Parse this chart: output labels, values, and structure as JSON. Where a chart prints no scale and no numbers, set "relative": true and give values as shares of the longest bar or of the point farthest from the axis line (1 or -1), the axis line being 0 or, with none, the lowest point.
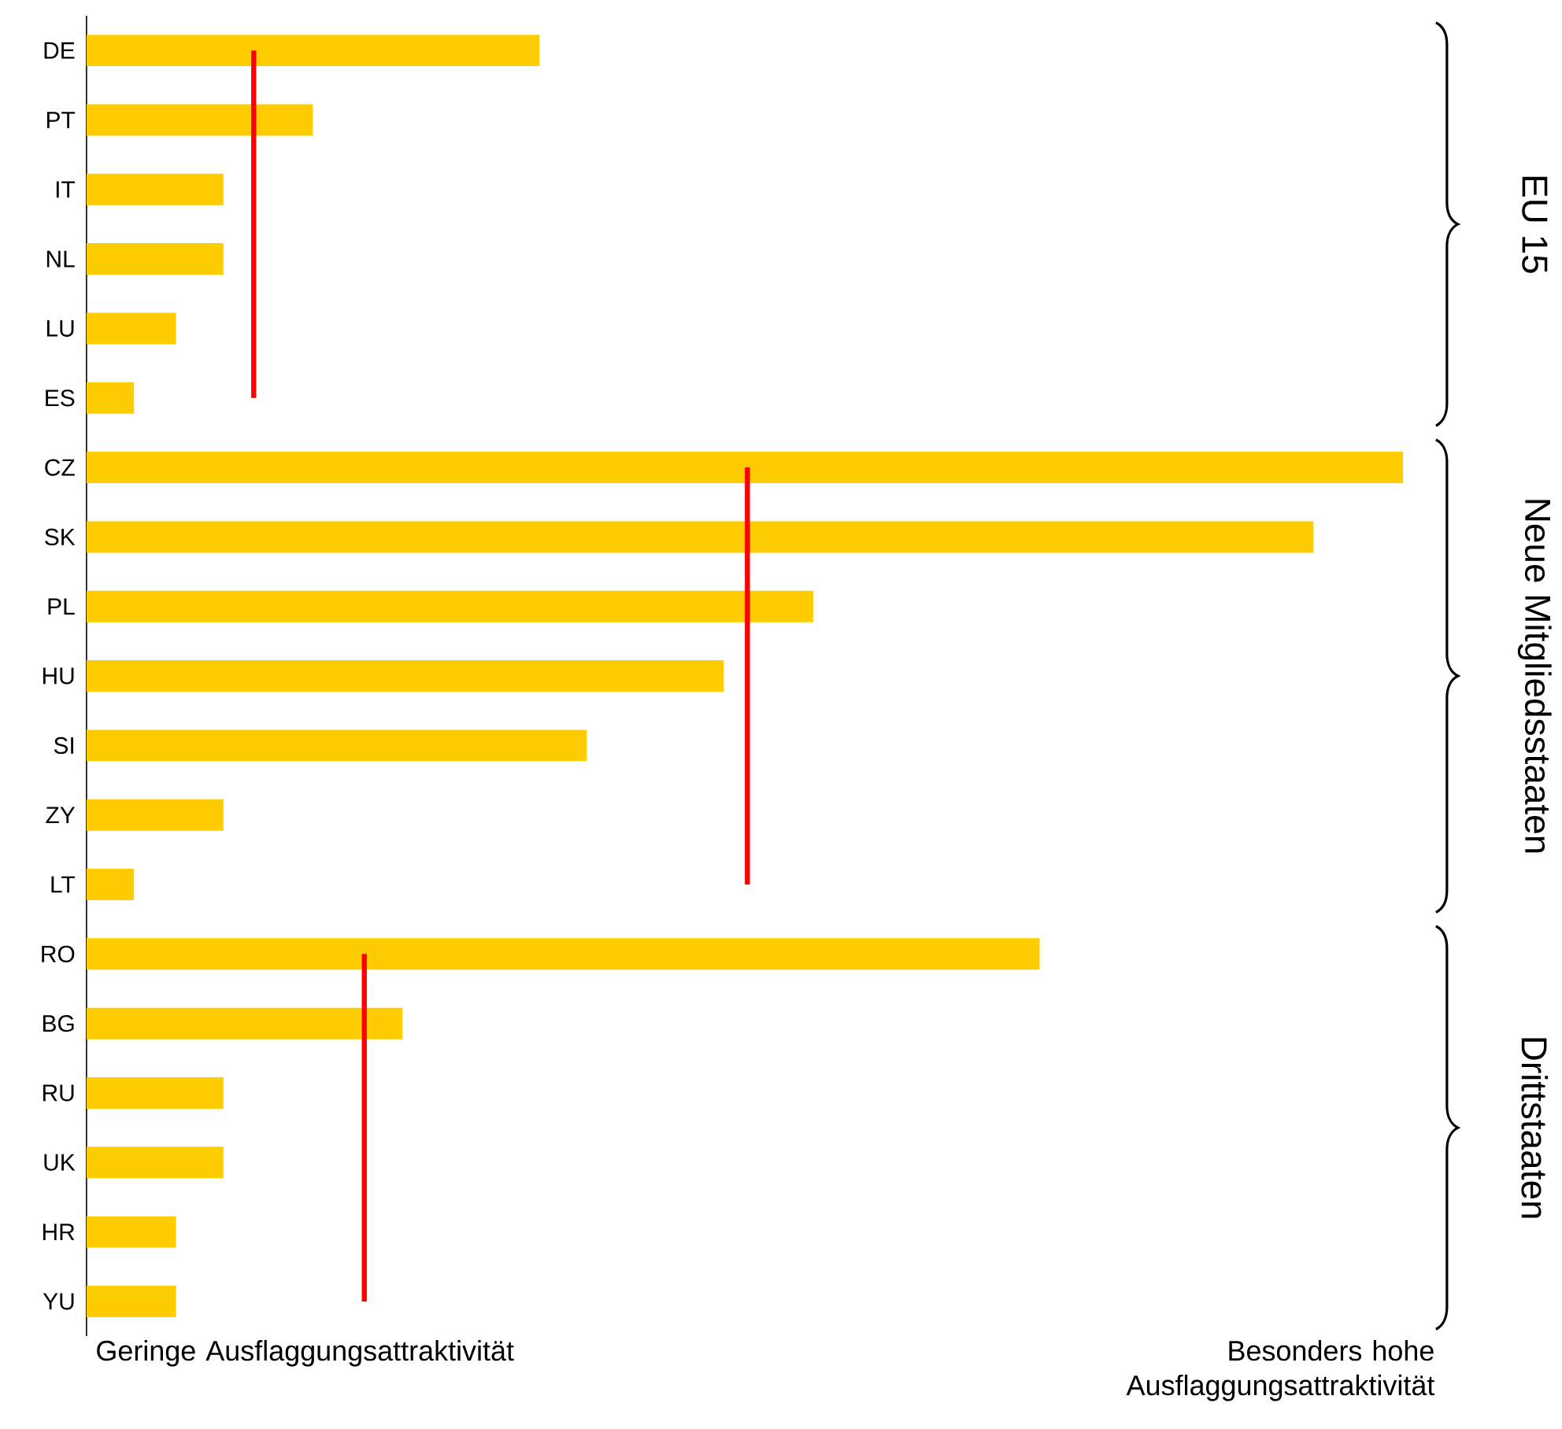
{
  "chart_data": {
    "type": "bar",
    "orientation": "horizontal",
    "relative": true,
    "categories": [
      "DE",
      "PT",
      "IT",
      "NL",
      "LU",
      "ES",
      "CZ",
      "SK",
      "PL",
      "HU",
      "SI",
      "ZY",
      "LT",
      "RO",
      "BG",
      "RU",
      "UK",
      "HR",
      "YU"
    ],
    "series": [
      {
        "color": "#ffcc00",
        "values": [
          0.344,
          0.172,
          0.104,
          0.104,
          0.068,
          0.036,
          1,
          0.932,
          0.552,
          0.484,
          0.38,
          0.104,
          0.036,
          0.724,
          0.24,
          0.104,
          0.104,
          0.068,
          0.068
        ]
      },
      {
        "type": "line",
        "color": "#ff0000",
        "values": [
          0.127,
          0.127,
          0.127,
          0.127,
          0.127,
          0.127,
          null,
          null,
          null,
          null,
          null,
          null,
          null,
          null,
          null,
          null,
          null,
          null,
          null
        ]
      },
      {
        "type": "line",
        "color": "#ff0000",
        "values": [
          null,
          null,
          null,
          null,
          null,
          null,
          0.502,
          0.502,
          0.502,
          0.502,
          0.502,
          0.502,
          0.502,
          null,
          null,
          null,
          null,
          null,
          null
        ]
      },
      {
        "type": "line",
        "color": "#ff0000",
        "values": [
          null,
          null,
          null,
          null,
          null,
          null,
          null,
          null,
          null,
          null,
          null,
          null,
          null,
          0.211,
          0.211,
          0.211,
          0.211,
          0.211,
          0.211
        ]
      }
    ],
    "annotations": [
      "Geringe Ausflaggungsattraktivität",
      "Besonders hohe Ausflaggungsattraktivität",
      "EU 15",
      "Neue Mitgliedsstaaten",
      "Drittstaaten"
    ]
  }
}
